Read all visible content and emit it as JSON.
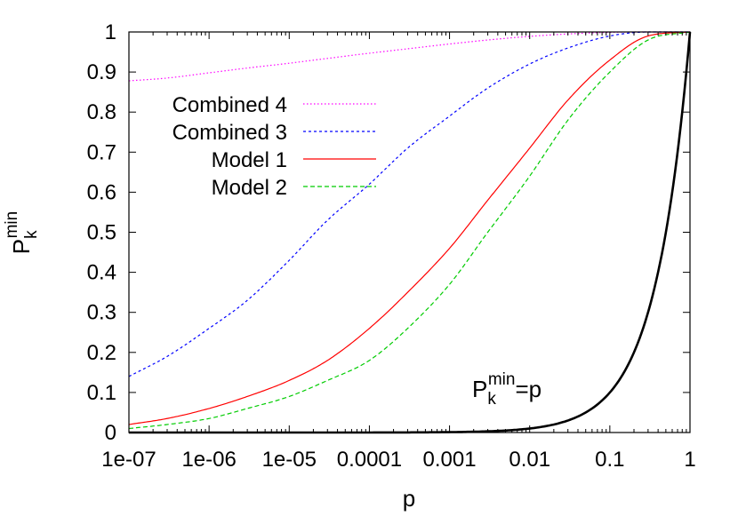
{
  "chart_data": {
    "type": "line",
    "title": "",
    "xlabel": "p",
    "ylabel": {
      "base": "P",
      "sub": "k",
      "sup": "min"
    },
    "x_scale": "log",
    "xlim": [
      1e-07,
      1
    ],
    "ylim": [
      0,
      1
    ],
    "x_ticks": [
      {
        "value": 1e-07,
        "label": "1e-07"
      },
      {
        "value": 1e-06,
        "label": "1e-06"
      },
      {
        "value": 1e-05,
        "label": "1e-05"
      },
      {
        "value": 0.0001,
        "label": "0.0001"
      },
      {
        "value": 0.001,
        "label": "0.001"
      },
      {
        "value": 0.01,
        "label": "0.01"
      },
      {
        "value": 0.1,
        "label": "0.1"
      },
      {
        "value": 1,
        "label": "1"
      }
    ],
    "y_ticks": [
      {
        "value": 0,
        "label": "0"
      },
      {
        "value": 0.1,
        "label": "0.1"
      },
      {
        "value": 0.2,
        "label": "0.2"
      },
      {
        "value": 0.3,
        "label": "0.3"
      },
      {
        "value": 0.4,
        "label": "0.4"
      },
      {
        "value": 0.5,
        "label": "0.5"
      },
      {
        "value": 0.6,
        "label": "0.6"
      },
      {
        "value": 0.7,
        "label": "0.7"
      },
      {
        "value": 0.8,
        "label": "0.8"
      },
      {
        "value": 0.9,
        "label": "0.9"
      },
      {
        "value": 1,
        "label": "1"
      }
    ],
    "grid": false,
    "legend_position": "top-left",
    "series": [
      {
        "name": "Combined 4",
        "color": "#ff00ff",
        "style": "dotted",
        "x": [
          1e-07,
          3e-07,
          1e-06,
          3e-06,
          1e-05,
          3e-05,
          0.0001,
          0.0003,
          0.001,
          0.003,
          0.01,
          0.03,
          0.1,
          0.3,
          1
        ],
        "y": [
          0.878,
          0.885,
          0.898,
          0.91,
          0.922,
          0.934,
          0.947,
          0.958,
          0.97,
          0.98,
          0.989,
          0.995,
          0.999,
          1.0,
          1.0
        ]
      },
      {
        "name": "Combined 3",
        "color": "#0000ff",
        "style": "short-dash",
        "x": [
          1e-07,
          3e-07,
          1e-06,
          3e-06,
          1e-05,
          3e-05,
          0.0001,
          0.0003,
          0.001,
          0.003,
          0.01,
          0.03,
          0.1,
          0.3,
          1
        ],
        "y": [
          0.14,
          0.19,
          0.26,
          0.33,
          0.43,
          0.53,
          0.62,
          0.71,
          0.79,
          0.86,
          0.92,
          0.96,
          0.99,
          1.0,
          1.0
        ]
      },
      {
        "name": "Model 1",
        "color": "#ff0000",
        "style": "solid",
        "x": [
          1e-07,
          3e-07,
          1e-06,
          3e-06,
          1e-05,
          3e-05,
          0.0001,
          0.0003,
          0.001,
          0.003,
          0.01,
          0.03,
          0.1,
          0.3,
          1
        ],
        "y": [
          0.02,
          0.035,
          0.06,
          0.09,
          0.13,
          0.18,
          0.26,
          0.35,
          0.46,
          0.58,
          0.71,
          0.83,
          0.93,
          0.99,
          1.0
        ]
      },
      {
        "name": "Model 2",
        "color": "#00cc00",
        "style": "dashed",
        "x": [
          1e-07,
          3e-07,
          1e-06,
          3e-06,
          1e-05,
          3e-05,
          0.0001,
          0.0003,
          0.001,
          0.003,
          0.01,
          0.03,
          0.1,
          0.3,
          1
        ],
        "y": [
          0.01,
          0.02,
          0.035,
          0.06,
          0.09,
          0.13,
          0.18,
          0.26,
          0.37,
          0.5,
          0.64,
          0.78,
          0.9,
          0.98,
          1.0
        ]
      },
      {
        "name": "",
        "color": "#000000",
        "style": "solid-thick",
        "formula": "y = x",
        "x": [
          1e-07,
          0.0001,
          0.001,
          0.003,
          0.01,
          0.03,
          0.1,
          0.2,
          0.3,
          0.5,
          0.7,
          1
        ],
        "y": [
          1e-07,
          0.0001,
          0.001,
          0.003,
          0.01,
          0.03,
          0.1,
          0.2,
          0.3,
          0.5,
          0.7,
          1.0
        ]
      }
    ],
    "annotation": {
      "base": "P",
      "sub": "k",
      "sup": "min",
      "tail": "=p",
      "at": {
        "x": 0.0003,
        "y": 0.08
      }
    }
  }
}
